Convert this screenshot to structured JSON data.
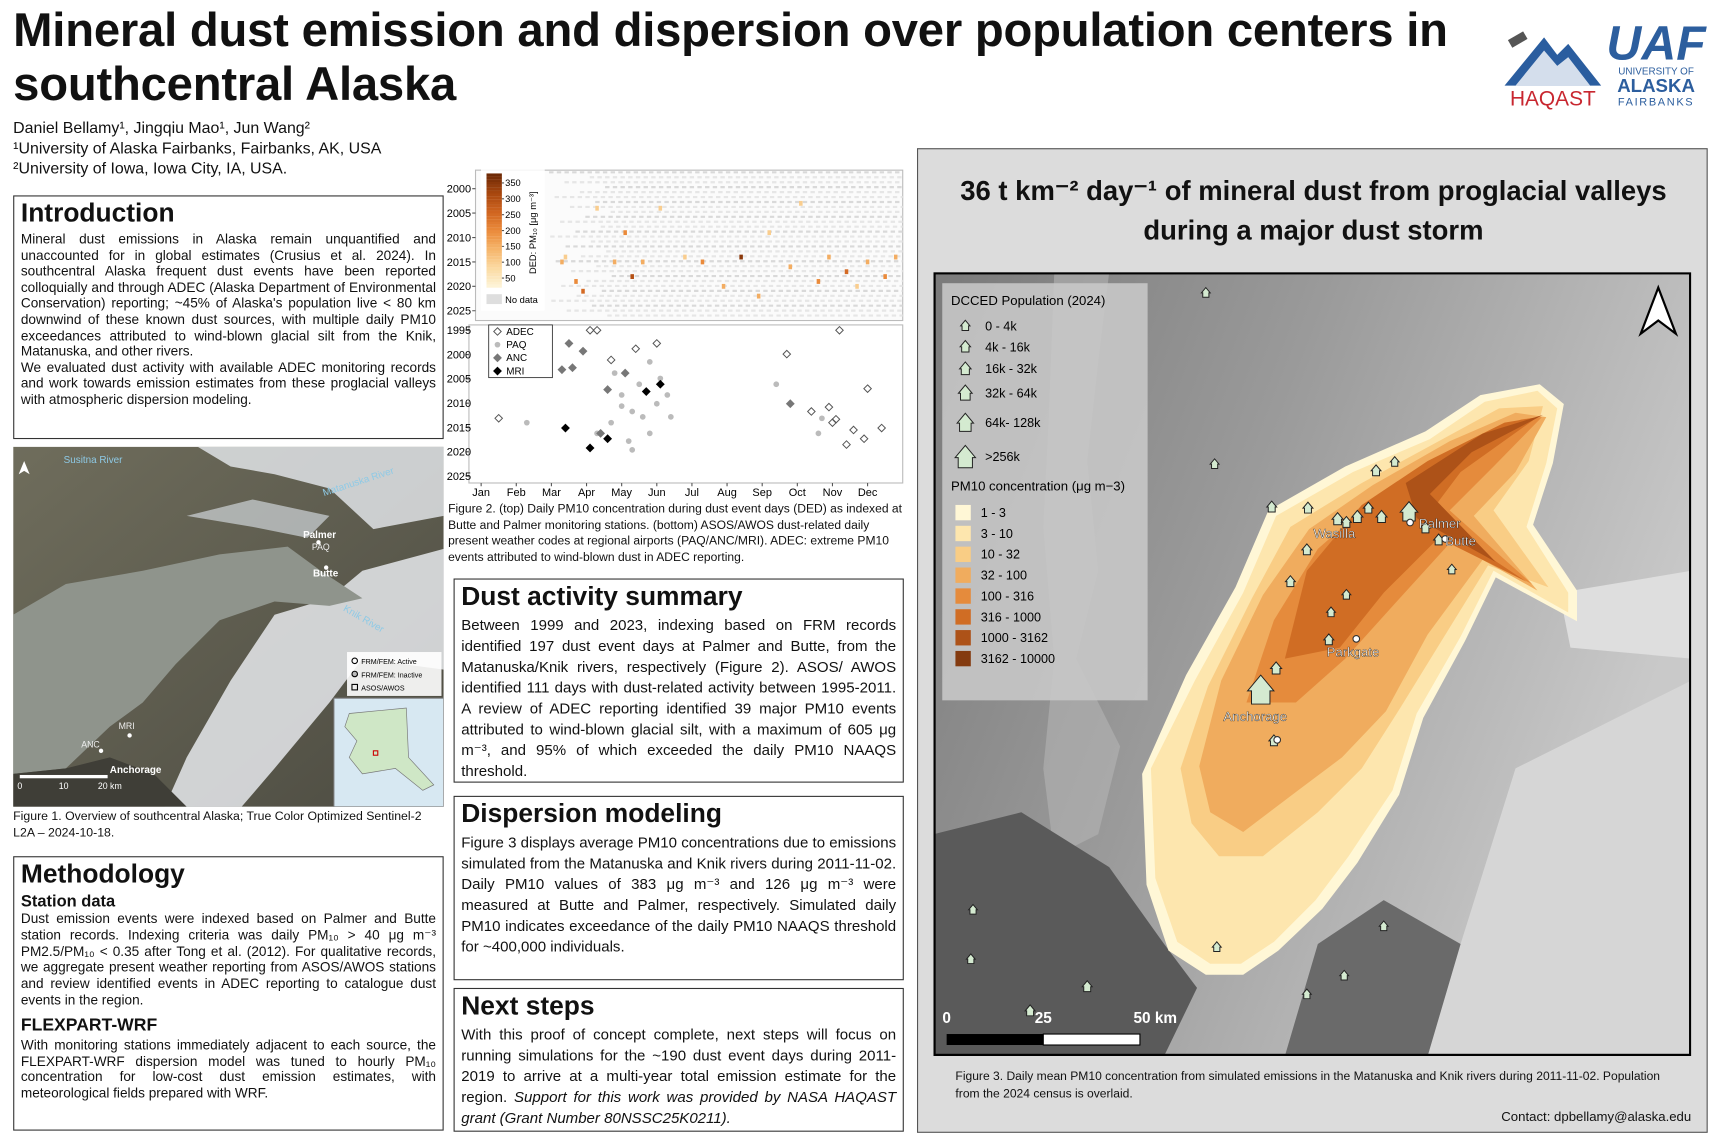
{
  "header": {
    "title": "Mineral dust emission and dispersion over population centers in southcentral Alaska",
    "authors": "Daniel Bellamy¹, Jingqiu Mao¹, Jun Wang²",
    "affiliations": [
      "¹University of Alaska Fairbanks, Fairbanks, AK,  USA",
      "²University of Iowa, Iowa City, IA, USA."
    ],
    "logos": {
      "haqast": "HAQAST",
      "uaf": "UAF",
      "uaf_lines": [
        "UNIVERSITY OF",
        "ALASKA",
        "FAIRBANKS"
      ]
    }
  },
  "introduction": {
    "heading": "Introduction",
    "paragraphs": [
      "Mineral dust emissions in Alaska remain unquantified and unaccounted for in global estimates (Crusius et al. 2024). In southcentral Alaska frequent dust events have been reported colloquially and through ADEC (Alaska Department of Environmental Conservation) reporting; ~45% of Alaska's population live < 80 km downwind of these known dust sources, with multiple daily PM10 exceedances attributed to wind-blown glacial silt from the Knik, Matanuska, and other rivers.",
      "We evaluated dust activity with available ADEC monitoring records and work towards emission estimates from these proglacial valleys with atmospheric dispersion modeling."
    ]
  },
  "figure1": {
    "labels": {
      "susitna": "Susitna River",
      "matanuska": "Matanuska River",
      "palmer": "Palmer",
      "paq": "PAQ",
      "butte": "Butte",
      "knik": "Knik River",
      "mri": "MRI",
      "anc": "ANC",
      "anchorage": "Anchorage"
    },
    "legend": [
      "FRM/FEM: Active",
      "FRM/FEM: Inactive",
      "ASOS/AWOS"
    ],
    "scale": [
      "0",
      "10",
      "20 km"
    ],
    "caption": "Figure 1. Overview of southcentral Alaska; True Color Optimized Sentinel-2 L2A – 2024-10-18."
  },
  "methodology": {
    "heading": "Methodology",
    "station_heading": "Station data",
    "station_text": "Dust emission events were indexed based on Palmer and Butte station records. Indexing criteria was daily PM₁₀ > 40 μg m⁻³ PM2.5/PM₁₀ < 0.35 after Tong et al. (2012). For qualitative records, we aggregate present weather reporting from ASOS/AWOS stations and review identified events in ADEC reporting to catalogue dust events in the region.",
    "flexpart_heading": "FLEXPART-WRF",
    "flexpart_text": "With monitoring stations immediately adjacent to each source, the FLEXPART-WRF dispersion model was tuned to hourly PM₁₀ concentration for low-cost dust emission estimates, with meteorological fields prepared with WRF."
  },
  "figure2": {
    "heatmap": {
      "type": "heatmap",
      "xlim": [
        0.84,
        13
      ],
      "ylim": [
        1996.2,
        2027
      ],
      "yticks": [
        2000,
        2005,
        2010,
        2015,
        2020,
        2025
      ],
      "colorbar": {
        "label": "DED: PM₁₀ [μg m⁻³]",
        "clim": [
          20,
          380
        ],
        "ticks": [
          50,
          100,
          150,
          200,
          250,
          300,
          350
        ],
        "colors": [
          "#fdf3d6",
          "#fbd9a0",
          "#f5b46a",
          "#ea8a3a",
          "#cf6420",
          "#a8470f",
          "#6e2a06"
        ],
        "nodata": "No data"
      },
      "x": [
        3.3,
        3.4,
        3.7,
        3.9,
        4.3,
        4.8,
        5.1,
        5.3,
        5.6,
        6.1,
        6.8,
        7.3,
        7.9,
        9.2,
        9.8,
        10.6,
        10.9,
        11.4,
        11.7,
        12.0,
        12.5,
        12.8,
        8.4,
        8.9,
        10.1
      ],
      "y": [
        2015,
        2014,
        2019,
        2021,
        2004,
        2015,
        2009,
        2018,
        2015,
        2004,
        2014,
        2015,
        2020,
        2009,
        2016,
        2019,
        2014,
        2017,
        2020,
        2015,
        2018,
        2014,
        2014,
        2022,
        2003
      ],
      "values": [
        150,
        100,
        200,
        250,
        100,
        150,
        200,
        300,
        150,
        100,
        100,
        200,
        150,
        100,
        150,
        200,
        150,
        250,
        100,
        150,
        200,
        150,
        350,
        150,
        100
      ]
    },
    "scatter": {
      "type": "scatter",
      "xlim": [
        0.84,
        13
      ],
      "ylim": [
        1993.9,
        2026.4
      ],
      "xticks": [
        {
          "value": 1,
          "label": "Jan"
        },
        {
          "value": 2,
          "label": "Feb"
        },
        {
          "value": 3,
          "label": "Mar"
        },
        {
          "value": 4,
          "label": "Apr"
        },
        {
          "value": 5,
          "label": "May"
        },
        {
          "value": 6,
          "label": "Jun"
        },
        {
          "value": 7,
          "label": "Jul"
        },
        {
          "value": 8,
          "label": "Aug"
        },
        {
          "value": 9,
          "label": "Sep"
        },
        {
          "value": 10,
          "label": "Oct"
        },
        {
          "value": 11,
          "label": "Nov"
        },
        {
          "value": 12,
          "label": "Dec"
        }
      ],
      "yticks": [
        1995,
        2000,
        2005,
        2010,
        2015,
        2020,
        2025
      ],
      "series": [
        {
          "name": "ADEC",
          "marker": "diamond-open",
          "color": "#555555",
          "x": [
            1.5,
            4.1,
            4.3,
            4.7,
            5.4,
            6.0,
            9.7,
            11.2,
            11.0,
            11.1,
            12.0,
            11.6,
            11.9,
            12.4,
            11.4,
            10.4,
            10.9
          ],
          "y": [
            2013.1,
            1995,
            1995,
            2001.1,
            1998.8,
            1997.7,
            1999.9,
            1995,
            2014,
            2013.3,
            2007,
            2015.5,
            2017.3,
            2015.1,
            2018.5,
            2011.7,
            2010.8
          ]
        },
        {
          "name": "PAQ",
          "marker": "circle",
          "color": "#bbbbbb",
          "x": [
            4.8,
            5.0,
            5.3,
            5.6,
            5.8,
            5.2,
            4.7,
            6.0,
            6.3,
            5.3,
            5.0,
            5.5,
            4.3,
            2.3,
            9.4,
            10.6,
            10.7,
            6.4,
            5.8,
            6.1
          ],
          "y": [
            2003.8,
            2008.3,
            2011.7,
            2012.8,
            2016.2,
            2017.8,
            2014,
            2010.1,
            2008.3,
            2019.6,
            2010.6,
            2006.1,
            2016.2,
            2014,
            2006.1,
            2016.2,
            2013.1,
            2012.8,
            2001.5,
            2004.9
          ]
        },
        {
          "name": "ANC",
          "marker": "diamond",
          "color": "#777777",
          "x": [
            3.5,
            3.9,
            4.6,
            9.8,
            5.1,
            3.6,
            3.3,
            4.4
          ],
          "y": [
            1997.7,
            1999.3,
            2007.2,
            2010.1,
            2003.8,
            2002.7,
            2003.1,
            2016.2
          ]
        },
        {
          "name": "MRI",
          "marker": "diamond",
          "color": "#000000",
          "x": [
            3.4,
            4.1,
            5.7,
            6.1,
            4.6
          ],
          "y": [
            2015.1,
            2019.2,
            2007.6,
            2006.1,
            2017.3
          ]
        }
      ]
    },
    "caption": "Figure 2. (top) Daily PM10 concentration during dust event days (DED) as indexed at Butte and Palmer monitoring stations. (bottom) ASOS/AWOS dust-related daily present weather codes at regional airports (PAQ/ANC/MRI). ADEC: extreme PM10 events attributed to wind-blown dust in ADEC reporting."
  },
  "dust_summary": {
    "heading": "Dust activity summary",
    "text": "Between 1999 and 2023, indexing based on FRM records identified 197 dust event days at Palmer and Butte, from the Matanuska/Knik rivers, respectively (Figure 2). ASOS/ AWOS identified 111 days with dust-related activity between 1995-2011. A review of ADEC reporting identified 39 major PM10 events attributed to wind-blown glacial silt, with a maximum of 605 μg m⁻³, and 95% of which exceeded the daily PM10 NAAQS threshold."
  },
  "dispersion": {
    "heading": "Dispersion modeling",
    "text": "Figure 3 displays average PM10 concentrations due to emissions simulated from the Matanuska and Knik rivers during 2011-11-02. Daily PM10 values of 383 μg m⁻³ and 126 μg m⁻³ were measured at Butte and Palmer, respectively. Simulated daily PM10 indicates exceedance of the daily PM10 NAAQS threshold for ~400,000 individuals."
  },
  "next_steps": {
    "heading": "Next steps",
    "text": "With this proof of concept complete, next steps will focus on running simulations for the ~190 dust event days during 2011-2019 to arrive at a multi-year total emission estimate for the region. ",
    "acknowledgement": "Support for this work was provided by NASA HAQAST grant (Grant Number 80NSSC25K0211)."
  },
  "figure3": {
    "title": "36 t km⁻² day⁻¹ of mineral dust from proglacial valleys during a major dust storm",
    "population_legend": {
      "title": "DCCED Population (2024)",
      "items": [
        "0 - 4k",
        "4k - 16k",
        "16k - 32k",
        "32k - 64k",
        "64k- 128k",
        ">256k"
      ]
    },
    "pm10_legend": {
      "title": "PM10 concentration (μg m−3)",
      "items": [
        "1 - 3",
        "3 - 10",
        "10 - 32",
        "32 - 100",
        "100 - 316",
        "316 - 1000",
        "1000 - 3162",
        "3162 - 10000"
      ],
      "colors": [
        "#fff7d6",
        "#fde6ae",
        "#f9cd85",
        "#f0ac5e",
        "#e58b3c",
        "#d06d24",
        "#ad5218",
        "#843b10"
      ]
    },
    "places": {
      "wasilla": "Wasilla",
      "palmer": "Palmer",
      "butte": "Butte",
      "parkgate": "Parkgate",
      "anchorage": "Anchorage"
    },
    "scale": [
      "0",
      "25",
      "50 km"
    ],
    "caption": "Figure 3. Daily mean PM10 concentration from simulated emissions in the Matanuska and Knik rivers during 2011-11-02. Population from the 2024 census is overlaid.",
    "contact": "Contact: dpbellamy@alaska.edu"
  }
}
